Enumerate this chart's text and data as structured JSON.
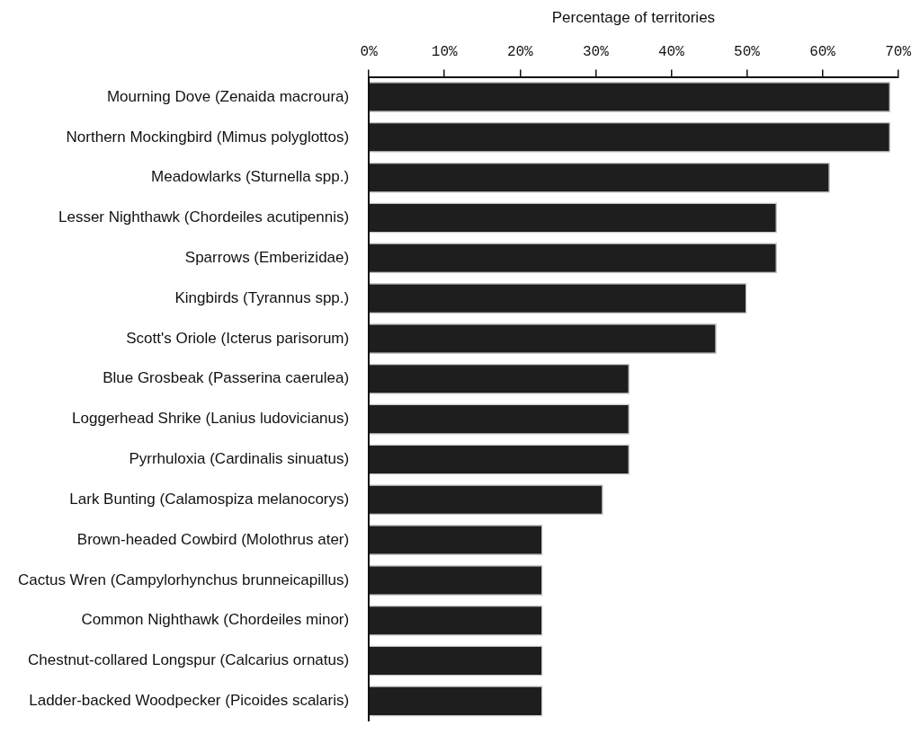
{
  "chart_data": {
    "type": "bar",
    "orientation": "horizontal",
    "xlabel": "Percentage of territories",
    "categories": [
      "Mourning Dove (Zenaida macroura)",
      "Northern Mockingbird (Mimus polyglottos)",
      "Meadowlarks (Sturnella spp.)",
      "Lesser Nighthawk (Chordeiles acutipennis)",
      "Sparrows (Emberizidae)",
      "Kingbirds (Tyrannus spp.)",
      "Scott's Oriole (Icterus parisorum)",
      "Blue Grosbeak (Passerina caerulea)",
      "Loggerhead Shrike (Lanius ludovicianus)",
      "Pyrrhuloxia (Cardinalis sinuatus)",
      "Lark Bunting (Calamospiza melanocorys)",
      "Brown-headed Cowbird (Molothrus ater)",
      "Cactus Wren (Campylorhynchus brunneicapillus)",
      "Common Nighthawk (Chordeiles minor)",
      "Chestnut-collared Longspur (Calcarius ornatus)",
      "Ladder-backed Woodpecker (Picoides scalaris)"
    ],
    "values": [
      69,
      69,
      61,
      54,
      54,
      50,
      46,
      34.5,
      34.5,
      34.5,
      31,
      23,
      23,
      23,
      23,
      23
    ],
    "color": "#1e1e1e",
    "xlim": [
      0,
      70
    ],
    "xticks": [
      {
        "value": 0,
        "label": "0%"
      },
      {
        "value": 10,
        "label": "10%"
      },
      {
        "value": 20,
        "label": "20%"
      },
      {
        "value": 30,
        "label": "30%"
      },
      {
        "value": 40,
        "label": "40%"
      },
      {
        "value": 50,
        "label": "50%"
      },
      {
        "value": 60,
        "label": "60%"
      },
      {
        "value": 70,
        "label": "70%"
      }
    ],
    "grid": false,
    "legend": false
  }
}
